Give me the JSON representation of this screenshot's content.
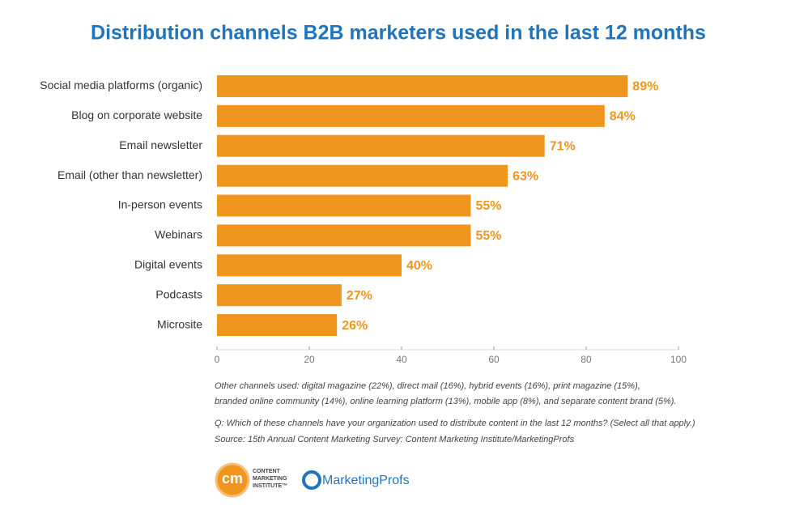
{
  "chart_data": {
    "type": "bar",
    "title": "Distribution channels B2B marketers used in the last 12 months",
    "categories": [
      "Social media platforms (organic)",
      "Blog on corporate website",
      "Email newsletter",
      "Email (other than newsletter)",
      "In-person events",
      "Webinars",
      "Digital events",
      "Podcasts",
      "Microsite"
    ],
    "values": [
      89,
      84,
      71,
      63,
      55,
      55,
      40,
      27,
      26
    ],
    "value_labels": [
      "89%",
      "84%",
      "71%",
      "63%",
      "55%",
      "55%",
      "40%",
      "27%",
      "26%"
    ],
    "color": "#f0961e",
    "xlim": [
      0,
      100
    ],
    "xticks": [
      0,
      20,
      40,
      60,
      80,
      100
    ],
    "notes": [
      "Other channels used: digital magazine (22%), direct mail (16%), hybrid events (16%), print magazine (15%),",
      "branded online community (14%), online learning platform (13%), mobile app (8%), and separate content brand (5%).",
      "Q: Which of these channels have your organization used to distribute content in the last 12 months? (Select all that apply.)",
      "Source: 15th Annual Content Marketing Survey: Content Marketing Institute/MarketingProfs"
    ]
  },
  "logos": {
    "cmi_mark": "cm",
    "cmi_name": [
      "CONTENT",
      "MARKETING",
      "INSTITUTE™"
    ],
    "mp": "MarketingProfs"
  }
}
